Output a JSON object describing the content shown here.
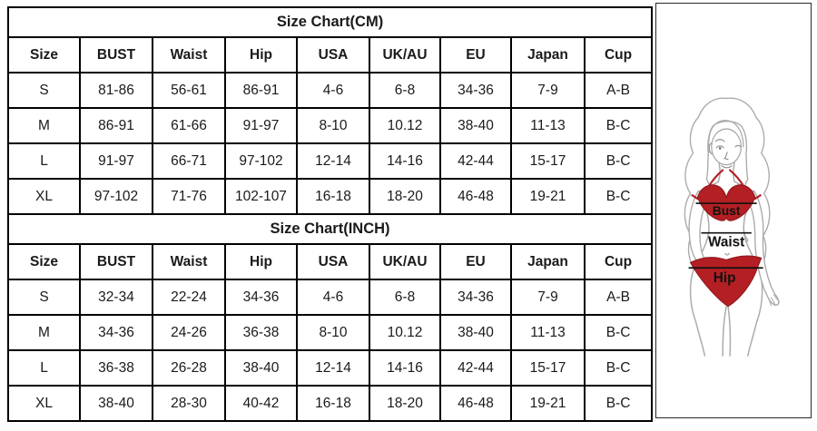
{
  "chart_data": [
    {
      "type": "table",
      "title": "Size Chart(CM)",
      "columns": [
        "Size",
        "BUST",
        "Waist",
        "Hip",
        "USA",
        "UK/AU",
        "EU",
        "Japan",
        "Cup"
      ],
      "rows": [
        [
          "S",
          "81-86",
          "56-61",
          "86-91",
          "4-6",
          "6-8",
          "34-36",
          "7-9",
          "A-B"
        ],
        [
          "M",
          "86-91",
          "61-66",
          "91-97",
          "8-10",
          "10.12",
          "38-40",
          "11-13",
          "B-C"
        ],
        [
          "L",
          "91-97",
          "66-71",
          "97-102",
          "12-14",
          "14-16",
          "42-44",
          "15-17",
          "B-C"
        ],
        [
          "XL",
          "97-102",
          "71-76",
          "102-107",
          "16-18",
          "18-20",
          "46-48",
          "19-21",
          "B-C"
        ]
      ]
    },
    {
      "type": "table",
      "title": "Size Chart(INCH)",
      "columns": [
        "Size",
        "BUST",
        "Waist",
        "Hip",
        "USA",
        "UK/AU",
        "EU",
        "Japan",
        "Cup"
      ],
      "rows": [
        [
          "S",
          "32-34",
          "22-24",
          "34-36",
          "4-6",
          "6-8",
          "34-36",
          "7-9",
          "A-B"
        ],
        [
          "M",
          "34-36",
          "24-26",
          "36-38",
          "8-10",
          "10.12",
          "38-40",
          "11-13",
          "B-C"
        ],
        [
          "L",
          "36-38",
          "26-28",
          "38-40",
          "12-14",
          "14-16",
          "42-44",
          "15-17",
          "B-C"
        ],
        [
          "XL",
          "38-40",
          "28-30",
          "40-42",
          "16-18",
          "18-20",
          "46-48",
          "19-21",
          "B-C"
        ]
      ]
    }
  ],
  "figure": {
    "labels": {
      "bust": "Bust",
      "waist": "Waist",
      "hip": "Hip"
    },
    "colors": {
      "bikini": "#b41f24",
      "bikini_outline": "#8d151b",
      "body_outline": "#ababab",
      "measure_line": "#111111"
    }
  }
}
